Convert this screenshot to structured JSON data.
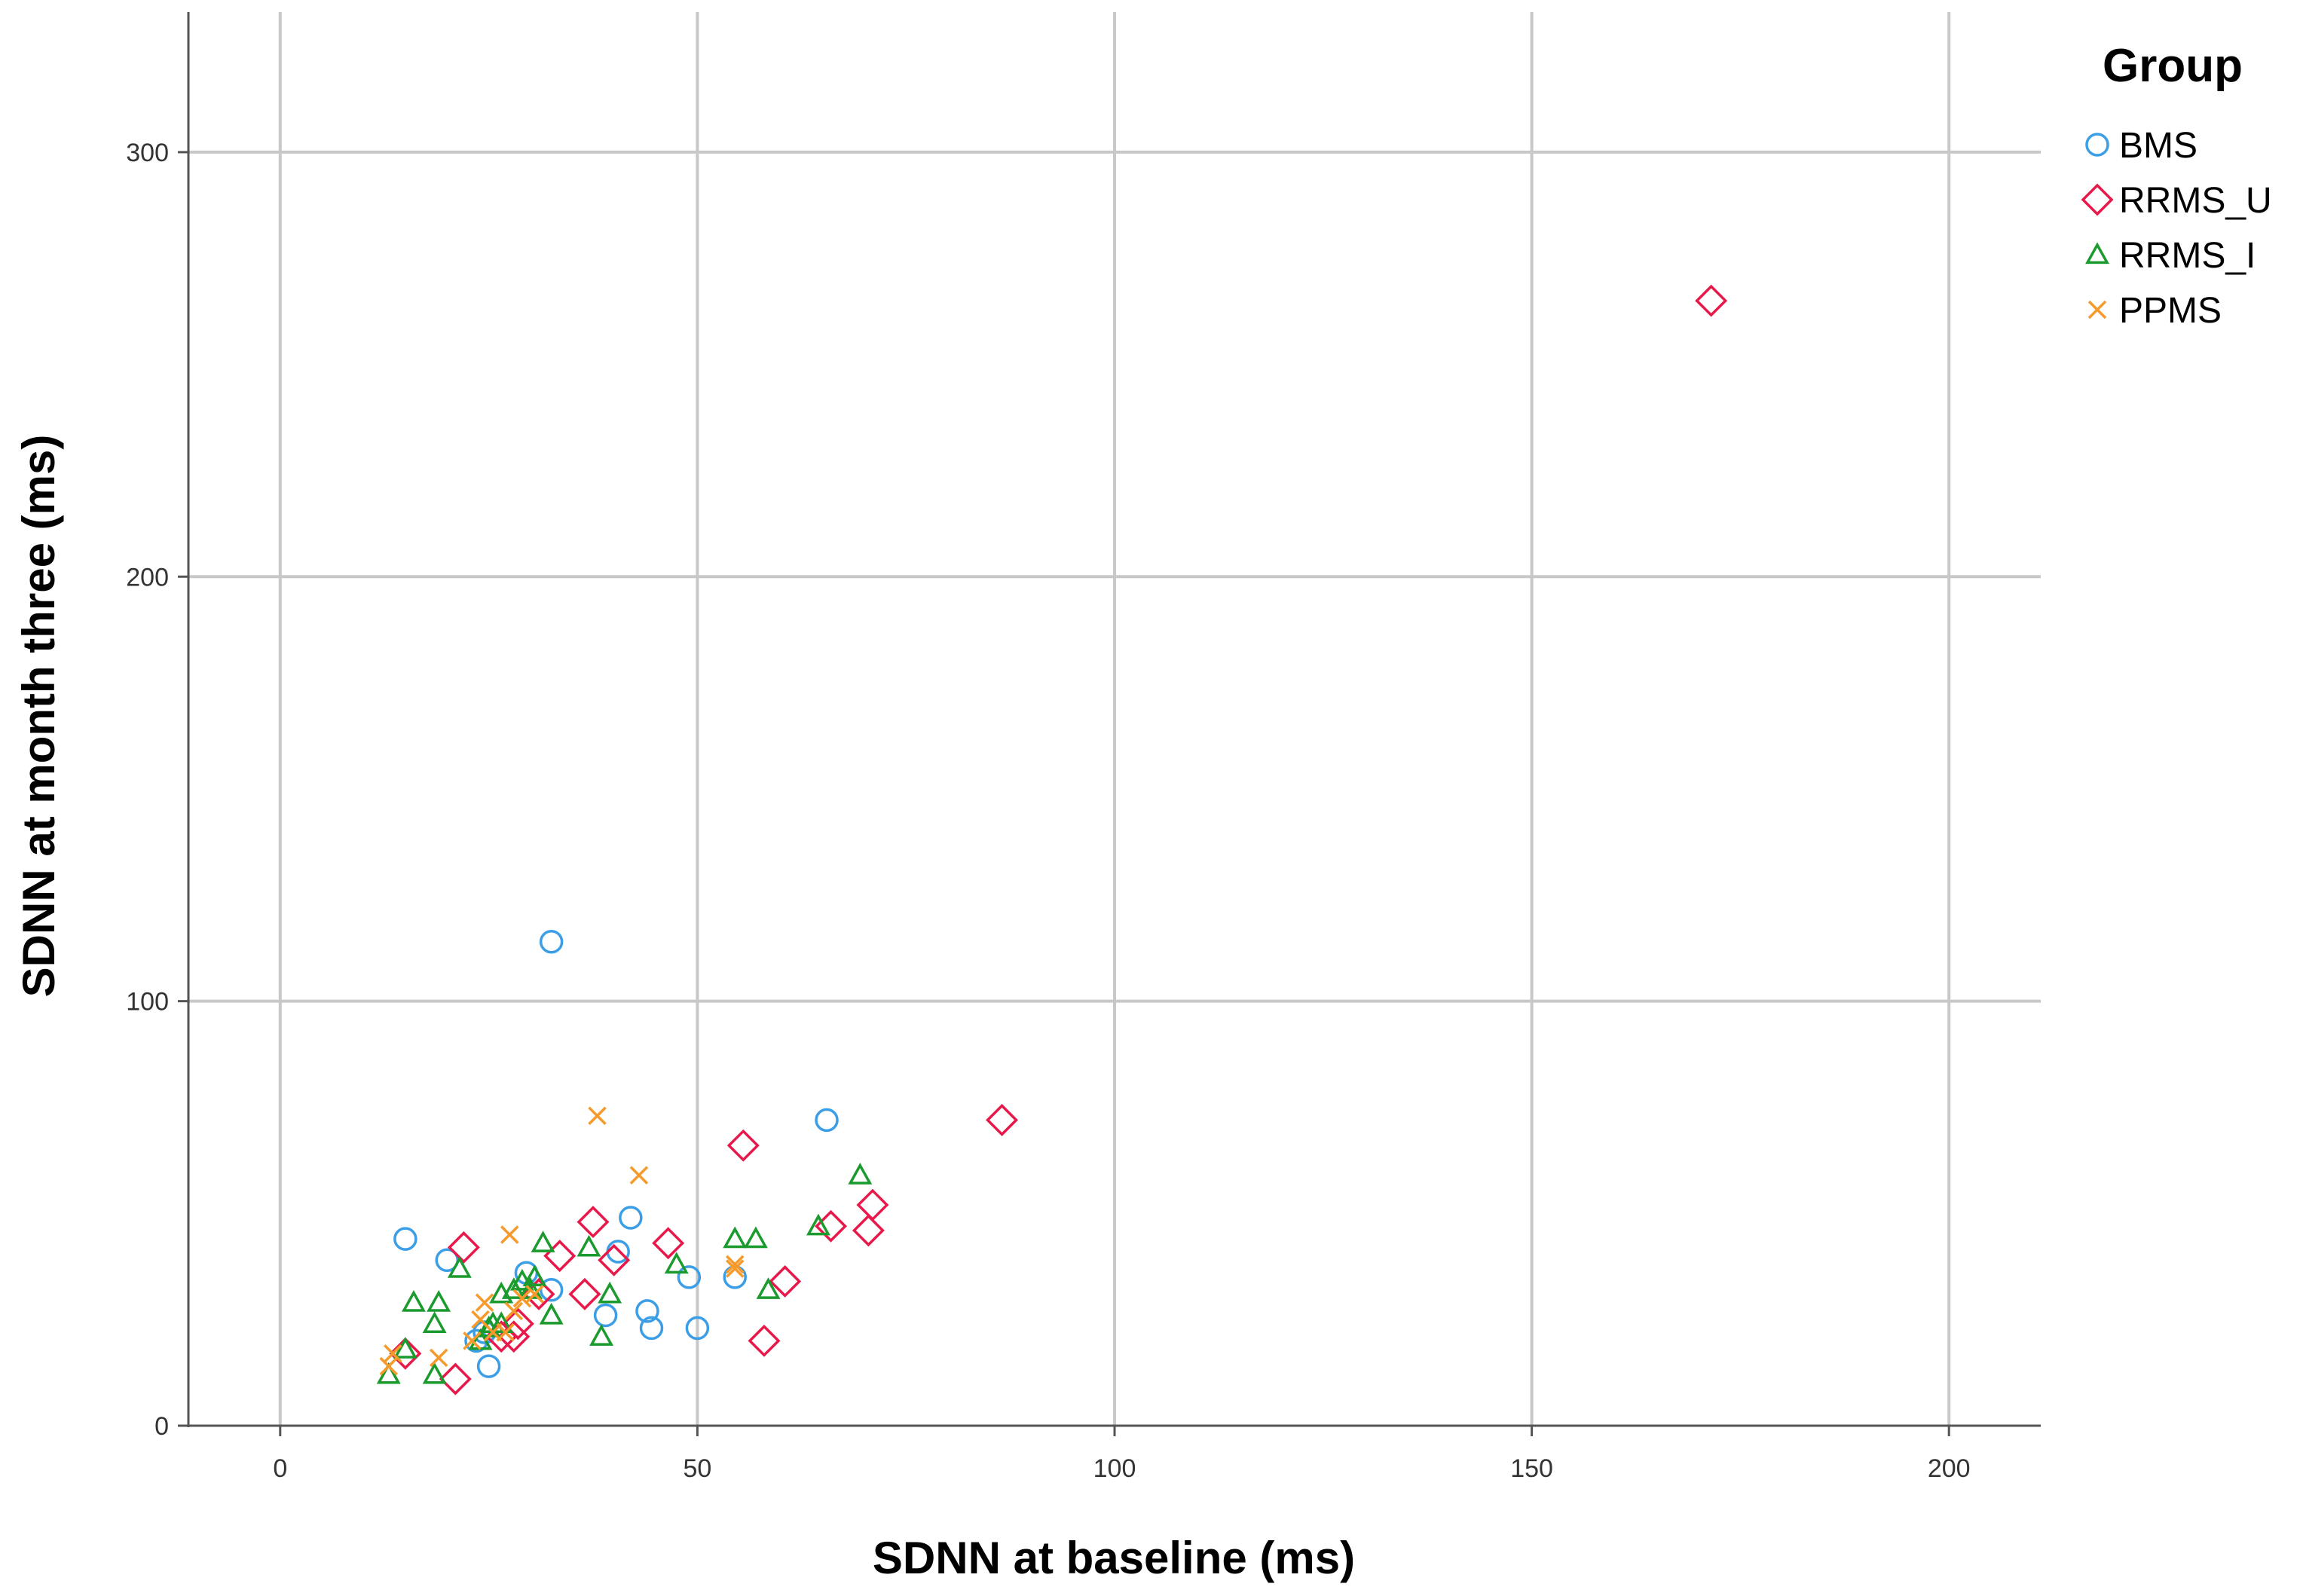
{
  "chart_data": {
    "type": "scatter",
    "xlabel": "SDNN at baseline (ms)",
    "ylabel": "SDNN at month three (ms)",
    "xlim": [
      -11,
      211
    ],
    "ylim": [
      0,
      333
    ],
    "x_ticks": [
      0,
      50,
      100,
      150,
      200
    ],
    "y_ticks": [
      0,
      100,
      200,
      300
    ],
    "grid": true,
    "legend": {
      "title": "Group",
      "position": "top-right outside plot"
    },
    "series": [
      {
        "name": "BMS",
        "marker": "circle",
        "color": "#3c9ee6",
        "points": [
          [
            15,
            44
          ],
          [
            20,
            39
          ],
          [
            23.5,
            20
          ],
          [
            24.5,
            22
          ],
          [
            25,
            14
          ],
          [
            29.5,
            36
          ],
          [
            32.5,
            32
          ],
          [
            32.5,
            114
          ],
          [
            39,
            26
          ],
          [
            40.5,
            41
          ],
          [
            42,
            49
          ],
          [
            44,
            27
          ],
          [
            44.5,
            23
          ],
          [
            49,
            35
          ],
          [
            50,
            23
          ],
          [
            54.5,
            35
          ],
          [
            65.5,
            72
          ]
        ]
      },
      {
        "name": "RRMS_U",
        "marker": "diamond",
        "color": "#e8194a",
        "points": [
          [
            15,
            17
          ],
          [
            21,
            11
          ],
          [
            22,
            42
          ],
          [
            26.5,
            21
          ],
          [
            28,
            21
          ],
          [
            28.5,
            24
          ],
          [
            31,
            31
          ],
          [
            33.5,
            40
          ],
          [
            36.5,
            31
          ],
          [
            37.5,
            48
          ],
          [
            40,
            39
          ],
          [
            46.5,
            43
          ],
          [
            55.5,
            66
          ],
          [
            58,
            20
          ],
          [
            60.5,
            34
          ],
          [
            66,
            47
          ],
          [
            70.5,
            46
          ],
          [
            71,
            52
          ],
          [
            86.5,
            72
          ],
          [
            171.5,
            265
          ]
        ]
      },
      {
        "name": "RRMS_I",
        "marker": "triangle",
        "color": "#1b9a2e",
        "points": [
          [
            13,
            12
          ],
          [
            15,
            18
          ],
          [
            16,
            29
          ],
          [
            18.5,
            12
          ],
          [
            18.5,
            24
          ],
          [
            19,
            29
          ],
          [
            21.5,
            37
          ],
          [
            24,
            20
          ],
          [
            25,
            23
          ],
          [
            25.5,
            24
          ],
          [
            26.5,
            24
          ],
          [
            26.5,
            31
          ],
          [
            28,
            32
          ],
          [
            29,
            34
          ],
          [
            30,
            32
          ],
          [
            30.5,
            35
          ],
          [
            31.5,
            43
          ],
          [
            32.5,
            26
          ],
          [
            37,
            42
          ],
          [
            38.5,
            21
          ],
          [
            39.5,
            31
          ],
          [
            47.5,
            38
          ],
          [
            54.5,
            44
          ],
          [
            57,
            44
          ],
          [
            58.5,
            32
          ],
          [
            64.5,
            47
          ],
          [
            69.5,
            59
          ]
        ]
      },
      {
        "name": "PPMS",
        "marker": "cross",
        "color": "#f59a2b",
        "points": [
          [
            13,
            14
          ],
          [
            13.5,
            17
          ],
          [
            19,
            16
          ],
          [
            23,
            20
          ],
          [
            24,
            25
          ],
          [
            24.5,
            29
          ],
          [
            25.5,
            22
          ],
          [
            27,
            22
          ],
          [
            27.5,
            45
          ],
          [
            28,
            27
          ],
          [
            29,
            30
          ],
          [
            30.5,
            31
          ],
          [
            38,
            73
          ],
          [
            43,
            59
          ],
          [
            54.5,
            37
          ],
          [
            54.5,
            38
          ]
        ]
      }
    ]
  }
}
